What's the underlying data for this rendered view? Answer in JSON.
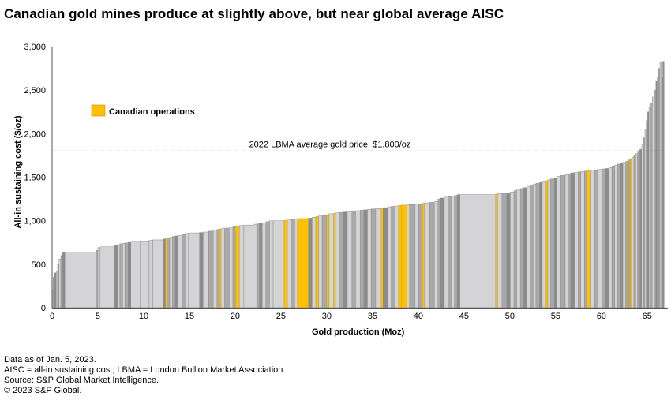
{
  "title": "Canadian gold mines produce at slightly above, but near global average AISC",
  "colors": {
    "canadian": "#FFC000",
    "light_bar": "#D4D4D6",
    "mid_bar": "#A9A9A9",
    "dark_bar": "#8C8C8C",
    "outline": "#8E8E8E",
    "axis": "#555555",
    "reference_line": "#666666"
  },
  "footnotes": [
    "Data as of Jan. 5, 2023.",
    "AISC = all-in sustaining cost; LBMA = London Bullion Market Association.",
    "Source: S&P Global Market Intelligence.",
    "© 2023 S&P Global."
  ],
  "chart_data": {
    "type": "bar",
    "subtype": "cost-curve (variable-width step bars sorted by AISC)",
    "title": "Canadian gold mines produce at slightly above, but near global average AISC",
    "xlabel": "Gold production (Moz)",
    "ylabel": "All-in sustaining cost ($/oz)",
    "xlim": [
      0,
      67
    ],
    "ylim": [
      0,
      3000
    ],
    "xticks": [
      0,
      5,
      10,
      15,
      20,
      25,
      30,
      35,
      40,
      45,
      50,
      55,
      60,
      65
    ],
    "yticks": [
      0,
      500,
      1000,
      1500,
      2000,
      2500,
      3000
    ],
    "ytick_labels": [
      "0",
      "500",
      "1,000",
      "1,500",
      "2,000",
      "2,500",
      "3,000"
    ],
    "grid": false,
    "legend": {
      "position": "top-left",
      "entries": [
        {
          "label": "Canadian operations",
          "color": "#FFC000"
        }
      ]
    },
    "reference_line": {
      "value": 1800,
      "label": "2022 LBMA average gold price: $1,800/oz",
      "style": "dashed"
    },
    "series_note": "Each segment = one mine: [cumulative production start (Moz), production width (Moz), AISC ($/oz), canadian flag (1 = Canadian)]",
    "segments": [
      [
        0.0,
        0.1,
        200,
        0
      ],
      [
        0.1,
        0.15,
        350,
        0
      ],
      [
        0.25,
        0.2,
        400,
        0
      ],
      [
        0.45,
        0.15,
        420,
        0
      ],
      [
        0.6,
        0.15,
        500,
        0
      ],
      [
        0.75,
        0.2,
        560,
        0
      ],
      [
        0.95,
        0.2,
        600,
        0
      ],
      [
        1.15,
        0.25,
        640,
        0
      ],
      [
        1.4,
        3.4,
        640,
        0
      ],
      [
        4.8,
        0.2,
        660,
        0
      ],
      [
        5.0,
        0.25,
        690,
        0
      ],
      [
        5.25,
        1.6,
        700,
        0
      ],
      [
        6.85,
        0.3,
        720,
        0
      ],
      [
        7.15,
        0.25,
        725,
        0
      ],
      [
        7.4,
        0.3,
        735,
        0
      ],
      [
        7.7,
        0.25,
        740,
        0
      ],
      [
        7.95,
        0.35,
        745,
        0
      ],
      [
        8.3,
        0.3,
        750,
        0
      ],
      [
        8.6,
        1.0,
        755,
        0
      ],
      [
        9.6,
        1.0,
        760,
        0
      ],
      [
        10.6,
        0.4,
        775,
        0
      ],
      [
        11.0,
        1.1,
        780,
        0
      ],
      [
        12.1,
        0.3,
        790,
        0
      ],
      [
        12.4,
        0.15,
        800,
        1
      ],
      [
        12.55,
        0.3,
        805,
        0
      ],
      [
        12.85,
        0.3,
        810,
        0
      ],
      [
        13.15,
        0.3,
        820,
        0
      ],
      [
        13.45,
        0.25,
        825,
        0
      ],
      [
        13.7,
        0.5,
        830,
        0
      ],
      [
        14.2,
        0.4,
        840,
        0
      ],
      [
        14.6,
        0.3,
        855,
        0
      ],
      [
        14.9,
        1.2,
        860,
        0
      ],
      [
        16.1,
        0.4,
        865,
        0
      ],
      [
        16.5,
        0.6,
        870,
        0
      ],
      [
        17.1,
        0.5,
        880,
        0
      ],
      [
        17.6,
        0.4,
        890,
        0
      ],
      [
        18.0,
        0.3,
        900,
        0
      ],
      [
        18.3,
        0.15,
        905,
        1
      ],
      [
        18.45,
        0.4,
        910,
        0
      ],
      [
        18.85,
        0.5,
        915,
        0
      ],
      [
        19.35,
        0.4,
        920,
        0
      ],
      [
        19.75,
        0.3,
        930,
        0
      ],
      [
        20.05,
        0.4,
        940,
        1
      ],
      [
        20.45,
        0.5,
        945,
        0
      ],
      [
        20.95,
        1.0,
        950,
        0
      ],
      [
        21.95,
        0.4,
        960,
        0
      ],
      [
        22.35,
        0.3,
        965,
        0
      ],
      [
        22.65,
        0.3,
        970,
        0
      ],
      [
        22.95,
        0.4,
        975,
        0
      ],
      [
        23.35,
        0.4,
        990,
        0
      ],
      [
        23.75,
        0.4,
        1000,
        0
      ],
      [
        24.15,
        1.2,
        1000,
        0
      ],
      [
        25.35,
        0.35,
        1005,
        1
      ],
      [
        25.7,
        0.4,
        1010,
        0
      ],
      [
        26.1,
        0.4,
        1015,
        0
      ],
      [
        26.5,
        0.3,
        1020,
        0
      ],
      [
        26.8,
        1.2,
        1025,
        1
      ],
      [
        28.0,
        0.4,
        1030,
        0
      ],
      [
        28.4,
        0.4,
        1040,
        0
      ],
      [
        28.8,
        0.3,
        1050,
        1
      ],
      [
        29.1,
        0.4,
        1055,
        0
      ],
      [
        29.5,
        0.5,
        1060,
        0
      ],
      [
        30.0,
        0.25,
        1070,
        1
      ],
      [
        30.25,
        0.5,
        1080,
        0
      ],
      [
        30.75,
        0.2,
        1085,
        1
      ],
      [
        30.95,
        0.4,
        1090,
        0
      ],
      [
        31.35,
        0.5,
        1095,
        0
      ],
      [
        31.85,
        0.4,
        1100,
        0
      ],
      [
        32.25,
        0.5,
        1105,
        0
      ],
      [
        32.75,
        0.4,
        1110,
        0
      ],
      [
        33.15,
        0.5,
        1115,
        0
      ],
      [
        33.65,
        0.4,
        1120,
        0
      ],
      [
        34.05,
        0.4,
        1125,
        0
      ],
      [
        34.45,
        0.4,
        1130,
        0
      ],
      [
        34.85,
        0.5,
        1135,
        0
      ],
      [
        35.35,
        0.6,
        1140,
        0
      ],
      [
        35.95,
        0.2,
        1145,
        1
      ],
      [
        36.15,
        0.5,
        1150,
        0
      ],
      [
        36.65,
        0.4,
        1160,
        0
      ],
      [
        37.05,
        0.4,
        1165,
        0
      ],
      [
        37.45,
        0.4,
        1170,
        0
      ],
      [
        37.85,
        0.3,
        1175,
        1
      ],
      [
        38.15,
        0.6,
        1180,
        1
      ],
      [
        38.75,
        0.3,
        1185,
        0
      ],
      [
        39.05,
        0.6,
        1185,
        0
      ],
      [
        39.65,
        0.4,
        1190,
        0
      ],
      [
        40.05,
        0.4,
        1195,
        0
      ],
      [
        40.45,
        0.2,
        1200,
        1
      ],
      [
        40.65,
        0.6,
        1205,
        0
      ],
      [
        41.25,
        0.5,
        1210,
        0
      ],
      [
        41.75,
        0.4,
        1220,
        0
      ],
      [
        42.15,
        0.3,
        1250,
        0
      ],
      [
        42.45,
        0.4,
        1260,
        0
      ],
      [
        42.85,
        0.4,
        1270,
        0
      ],
      [
        43.25,
        0.4,
        1275,
        0
      ],
      [
        43.65,
        0.3,
        1280,
        0
      ],
      [
        43.95,
        0.3,
        1290,
        0
      ],
      [
        44.25,
        0.3,
        1300,
        0
      ],
      [
        44.55,
        3.9,
        1300,
        0
      ],
      [
        48.45,
        0.2,
        1305,
        1
      ],
      [
        48.65,
        0.5,
        1310,
        0
      ],
      [
        49.15,
        0.5,
        1315,
        0
      ],
      [
        49.65,
        0.4,
        1320,
        0
      ],
      [
        50.05,
        0.4,
        1330,
        0
      ],
      [
        50.45,
        0.3,
        1345,
        0
      ],
      [
        50.75,
        0.4,
        1360,
        0
      ],
      [
        51.15,
        0.3,
        1370,
        0
      ],
      [
        51.45,
        0.4,
        1380,
        0
      ],
      [
        51.85,
        0.4,
        1395,
        0
      ],
      [
        52.25,
        0.3,
        1410,
        0
      ],
      [
        52.55,
        0.3,
        1420,
        0
      ],
      [
        52.85,
        0.4,
        1430,
        0
      ],
      [
        53.25,
        0.3,
        1440,
        0
      ],
      [
        53.55,
        0.4,
        1450,
        0
      ],
      [
        53.95,
        0.2,
        1460,
        1
      ],
      [
        54.15,
        0.3,
        1470,
        0
      ],
      [
        54.45,
        0.4,
        1480,
        0
      ],
      [
        54.85,
        0.3,
        1490,
        0
      ],
      [
        55.15,
        0.4,
        1510,
        0
      ],
      [
        55.55,
        0.5,
        1520,
        0
      ],
      [
        56.05,
        0.3,
        1530,
        0
      ],
      [
        56.35,
        0.3,
        1540,
        0
      ],
      [
        56.65,
        0.4,
        1550,
        0
      ],
      [
        57.05,
        0.4,
        1555,
        0
      ],
      [
        57.45,
        0.3,
        1560,
        0
      ],
      [
        57.75,
        0.4,
        1565,
        0
      ],
      [
        58.15,
        0.3,
        1570,
        0
      ],
      [
        58.45,
        0.4,
        1575,
        1
      ],
      [
        58.85,
        0.4,
        1580,
        0
      ],
      [
        59.25,
        0.4,
        1585,
        0
      ],
      [
        59.65,
        0.4,
        1590,
        0
      ],
      [
        60.05,
        0.4,
        1595,
        0
      ],
      [
        60.45,
        0.4,
        1600,
        0
      ],
      [
        60.85,
        0.3,
        1610,
        0
      ],
      [
        61.15,
        0.3,
        1620,
        0
      ],
      [
        61.45,
        0.3,
        1640,
        0
      ],
      [
        61.75,
        0.3,
        1650,
        0
      ],
      [
        62.05,
        0.3,
        1660,
        0
      ],
      [
        62.35,
        0.3,
        1670,
        0
      ],
      [
        62.65,
        0.2,
        1680,
        0
      ],
      [
        62.85,
        0.15,
        1690,
        1
      ],
      [
        63.0,
        0.2,
        1700,
        0
      ],
      [
        63.2,
        0.15,
        1715,
        1
      ],
      [
        63.35,
        0.2,
        1730,
        0
      ],
      [
        63.55,
        0.2,
        1750,
        0
      ],
      [
        63.75,
        0.2,
        1770,
        0
      ],
      [
        63.95,
        0.25,
        1790,
        0
      ],
      [
        64.2,
        0.2,
        1820,
        0
      ],
      [
        64.4,
        0.2,
        1870,
        0
      ],
      [
        64.6,
        0.15,
        1950,
        0
      ],
      [
        64.75,
        0.15,
        2050,
        0
      ],
      [
        64.9,
        0.15,
        2150,
        0
      ],
      [
        65.05,
        0.15,
        2250,
        0
      ],
      [
        65.2,
        0.15,
        2300,
        0
      ],
      [
        65.35,
        0.2,
        2350,
        0
      ],
      [
        65.55,
        0.2,
        2420,
        0
      ],
      [
        65.75,
        0.2,
        2500,
        0
      ],
      [
        65.95,
        0.15,
        2600,
        0
      ],
      [
        66.1,
        0.15,
        2650,
        0
      ],
      [
        66.25,
        0.15,
        2750,
        0
      ],
      [
        66.4,
        0.15,
        2820,
        0
      ],
      [
        66.55,
        0.15,
        2650,
        0
      ],
      [
        66.7,
        0.15,
        2830,
        0
      ]
    ]
  }
}
